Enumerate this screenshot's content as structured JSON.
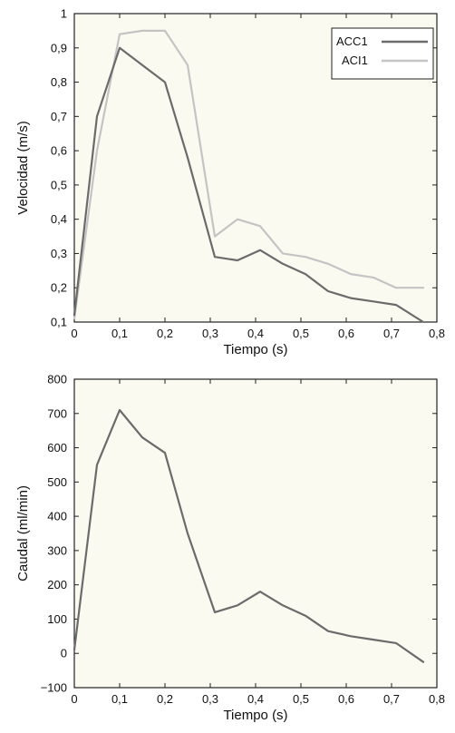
{
  "chart_data": [
    {
      "type": "line",
      "xlabel": "Tiempo (s)",
      "ylabel": "Velocidad (m/s)",
      "xlim": [
        0,
        0.8
      ],
      "ylim": [
        0.1,
        1
      ],
      "x_ticks": [
        "0",
        "0,1",
        "0,2",
        "0,3",
        "0,4",
        "0,5",
        "0,6",
        "0,7",
        "0,8"
      ],
      "y_ticks": [
        "0,1",
        "0,2",
        "0,3",
        "0,4",
        "0,5",
        "0,6",
        "0,7",
        "0,8",
        "0,9",
        "1"
      ],
      "legend_position": "top-right",
      "series": [
        {
          "name": "ACC1",
          "color": "#6b6b6b",
          "x": [
            0,
            0.05,
            0.1,
            0.15,
            0.2,
            0.25,
            0.31,
            0.36,
            0.41,
            0.46,
            0.51,
            0.56,
            0.61,
            0.66,
            0.71,
            0.77
          ],
          "y": [
            0.12,
            0.7,
            0.9,
            0.85,
            0.8,
            0.58,
            0.29,
            0.28,
            0.31,
            0.27,
            0.24,
            0.19,
            0.17,
            0.16,
            0.15,
            0.1
          ]
        },
        {
          "name": "ACI1",
          "color": "#c4c4c4",
          "x": [
            0,
            0.05,
            0.1,
            0.15,
            0.2,
            0.25,
            0.31,
            0.36,
            0.41,
            0.46,
            0.51,
            0.56,
            0.61,
            0.66,
            0.71,
            0.77
          ],
          "y": [
            0.11,
            0.6,
            0.94,
            0.95,
            0.95,
            0.85,
            0.35,
            0.4,
            0.38,
            0.3,
            0.29,
            0.27,
            0.24,
            0.23,
            0.2,
            0.2
          ]
        }
      ]
    },
    {
      "type": "line",
      "xlabel": "Tiempo (s)",
      "ylabel": "Caudal (ml/min)",
      "xlim": [
        0,
        0.8
      ],
      "ylim": [
        -100,
        800
      ],
      "x_ticks": [
        "0",
        "0,1",
        "0,2",
        "0,3",
        "0,4",
        "0,5",
        "0,6",
        "0,7",
        "0,8"
      ],
      "y_ticks": [
        "−100",
        "0",
        "100",
        "200",
        "300",
        "400",
        "500",
        "600",
        "700",
        "800"
      ],
      "series": [
        {
          "color": "#6b6b6b",
          "x": [
            0,
            0.05,
            0.1,
            0.15,
            0.2,
            0.25,
            0.31,
            0.36,
            0.41,
            0.46,
            0.51,
            0.56,
            0.61,
            0.66,
            0.71,
            0.77
          ],
          "y": [
            10,
            550,
            710,
            630,
            585,
            350,
            120,
            140,
            180,
            140,
            110,
            65,
            50,
            40,
            30,
            -25
          ]
        }
      ]
    }
  ]
}
